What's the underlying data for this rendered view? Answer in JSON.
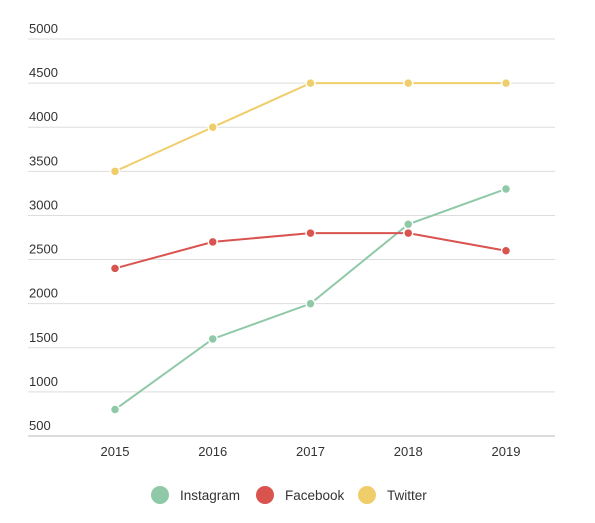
{
  "chart_data": {
    "type": "line",
    "categories": [
      "2015",
      "2016",
      "2017",
      "2018",
      "2019"
    ],
    "series": [
      {
        "name": "Instagram",
        "color": "#8fc9a8",
        "values": [
          800,
          1600,
          2000,
          2900,
          3300
        ]
      },
      {
        "name": "Facebook",
        "color": "#d9534f",
        "values": [
          2400,
          2700,
          2800,
          2800,
          2600
        ]
      },
      {
        "name": "Twitter",
        "color": "#f0cd6b",
        "values": [
          3500,
          4000,
          4500,
          4500,
          4500
        ]
      }
    ],
    "ylim": [
      500,
      5000
    ],
    "yticks": [
      500,
      1000,
      1500,
      2000,
      2500,
      3000,
      3500,
      4000,
      4500,
      5000
    ],
    "grid": true
  }
}
